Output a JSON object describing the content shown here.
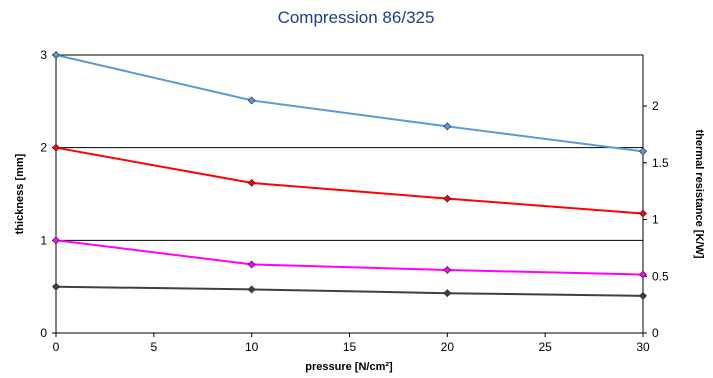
{
  "chart_data": {
    "type": "line",
    "title": "Compression 86/325",
    "xlabel": "pressure [N/cm²]",
    "ylabel": "thickness [mm]",
    "y2label": "thermal resistance [K/W]",
    "x": [
      0,
      10,
      20,
      30
    ],
    "xlim": [
      0,
      30
    ],
    "ylim": [
      0,
      3
    ],
    "y2lim": [
      0,
      2.45
    ],
    "xticks": [
      "0",
      "5",
      "10",
      "15",
      "20",
      "25",
      "30"
    ],
    "yticks": [
      "0",
      "1",
      "2",
      "3"
    ],
    "y2ticks": [
      "0",
      "0.5",
      "1",
      "1.5",
      "2"
    ],
    "grid": "horizontal major gridlines",
    "legend": "none",
    "series": [
      {
        "axis": "left",
        "color": "#5b9bd5",
        "marker": "diamond",
        "values": [
          3.0,
          2.51,
          2.23,
          1.96
        ]
      },
      {
        "axis": "left",
        "color": "#ff0000",
        "marker": "diamond",
        "values": [
          2.0,
          1.62,
          1.45,
          1.29
        ]
      },
      {
        "axis": "left",
        "color": "#ff00ff",
        "marker": "diamond",
        "values": [
          1.0,
          0.74,
          0.68,
          0.63
        ]
      },
      {
        "axis": "left",
        "color": "#404040",
        "marker": "diamond",
        "values": [
          0.5,
          0.47,
          0.43,
          0.4
        ]
      }
    ]
  }
}
